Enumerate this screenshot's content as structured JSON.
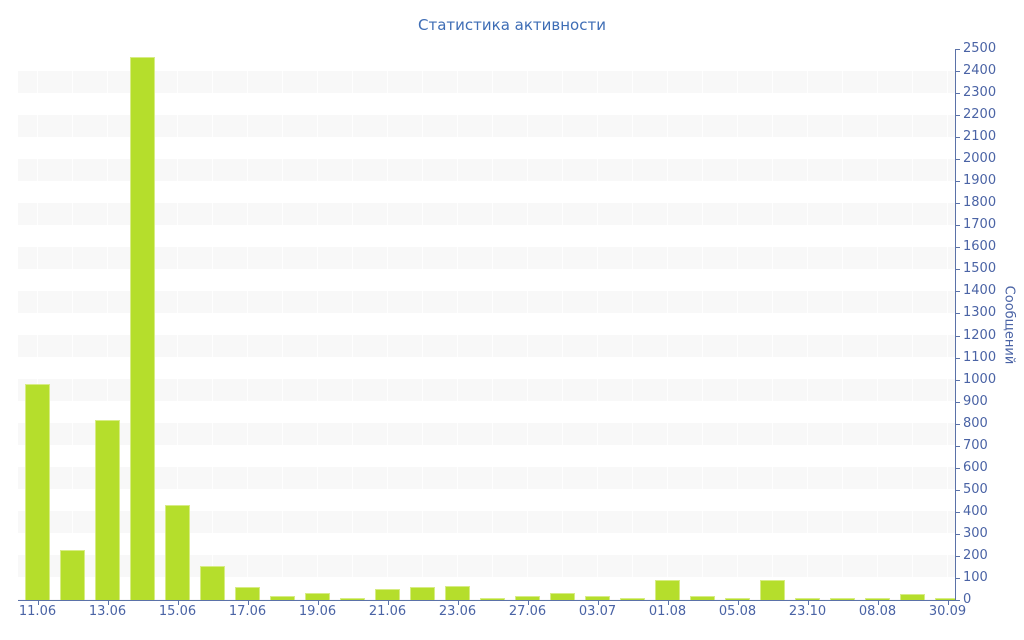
{
  "title": "Статистика активности",
  "colors": {
    "bar": "#b5de2c",
    "bar_edge": "#d7ec85",
    "axis": "#5b72a8",
    "label": "#4a63a5",
    "title": "#3e6db5",
    "stripe": "#f8f8f8"
  },
  "chart_data": {
    "type": "bar",
    "title": "Статистика активности",
    "xlabel": "",
    "ylabel": "Сообщений",
    "ylim": [
      0,
      2500
    ],
    "y_tick_step": 100,
    "legend": "none",
    "background_stripes": "horizontal alternating white/light-gray per 100 units",
    "categories": [
      "11.06",
      "",
      "13.06",
      "",
      "15.06",
      "",
      "17.06",
      "",
      "19.06",
      "",
      "21.06",
      "",
      "23.06",
      "",
      "27.06",
      "",
      "03.07",
      "",
      "01.08",
      "",
      "05.08",
      "",
      "23.10",
      "",
      "08.08",
      "",
      "30.09"
    ],
    "values": [
      980,
      225,
      815,
      2465,
      430,
      152,
      57,
      20,
      34,
      9,
      48,
      60,
      65,
      11,
      16,
      34,
      16,
      11,
      93,
      18,
      9,
      89,
      7,
      7,
      11,
      27,
      7
    ]
  }
}
